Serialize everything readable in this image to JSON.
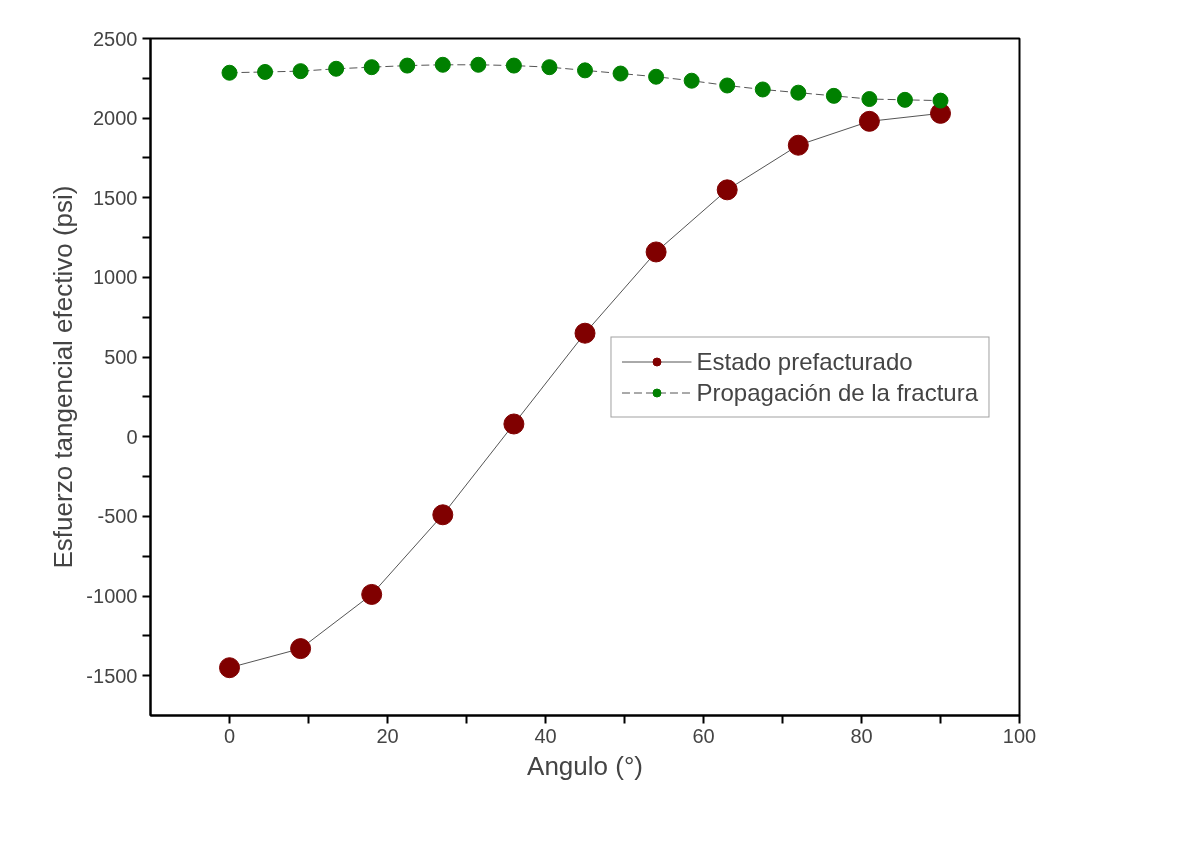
{
  "chart_data": {
    "type": "line",
    "xlabel": "Angulo (°)",
    "ylabel": "Esfuerzo tangencial efectivo (psi)",
    "series": [
      {
        "name": "Estado prefacturado",
        "color": "#800000",
        "x": [
          0,
          9,
          18,
          27,
          36,
          45,
          54,
          63,
          72,
          81,
          90
        ],
        "values": [
          -1450,
          -1330,
          -990,
          -490,
          80,
          650,
          1160,
          1550,
          1830,
          1980,
          2030
        ]
      },
      {
        "name": "Propagación de la fractura",
        "color": "#008000",
        "line_style": "dashed",
        "x": [
          0,
          4.5,
          9,
          13.5,
          18,
          22.5,
          27,
          31.5,
          36,
          40.5,
          45,
          49.5,
          54,
          58.5,
          63,
          67.5,
          72,
          76.5,
          81,
          85.5,
          90
        ],
        "values": [
          2285,
          2290,
          2295,
          2310,
          2320,
          2330,
          2335,
          2335,
          2330,
          2320,
          2300,
          2280,
          2260,
          2235,
          2205,
          2180,
          2160,
          2140,
          2120,
          2115,
          2110
        ]
      }
    ],
    "marker": "circle",
    "xlim": [
      -10,
      100
    ],
    "ylim": [
      -1750,
      2500
    ],
    "xticks": [
      0,
      {
        "value": 10,
        "label": null
      },
      20,
      {
        "value": 30,
        "label": null
      },
      40,
      {
        "value": 50,
        "label": null
      },
      60,
      {
        "value": 70,
        "label": null
      },
      80,
      {
        "value": 90,
        "label": null
      },
      100
    ],
    "yticks": [
      -1500,
      {
        "value": -1250,
        "label": null
      },
      -1000,
      {
        "value": -750,
        "label": null
      },
      -500,
      {
        "value": -250,
        "label": null
      },
      0,
      {
        "value": 250,
        "label": null
      },
      500,
      {
        "value": 750,
        "label": null
      },
      1000,
      {
        "value": 1250,
        "label": null
      },
      1500,
      {
        "value": 1750,
        "label": null
      },
      2000,
      {
        "value": 2250,
        "label": null
      },
      2500
    ],
    "grid": false,
    "legend": "right"
  }
}
